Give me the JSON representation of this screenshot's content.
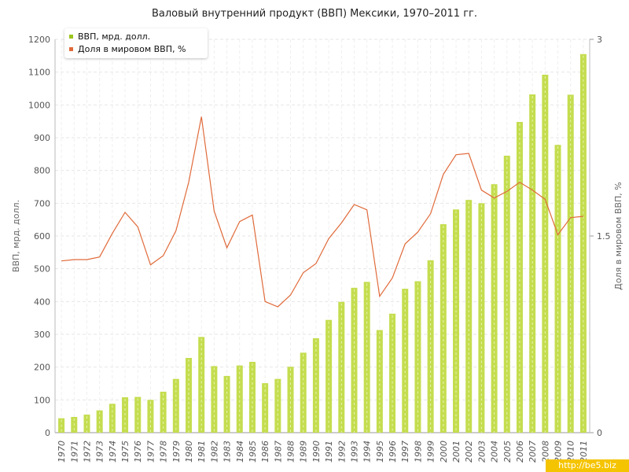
{
  "chart_data": {
    "type": "bar+line",
    "title": "Валовый внутренний продукт (ВВП) Мексики, 1970–2011 гг.",
    "categories": [
      "1970",
      "1971",
      "1972",
      "1973",
      "1974",
      "1975",
      "1976",
      "1977",
      "1978",
      "1979",
      "1980",
      "1981",
      "1982",
      "1983",
      "1984",
      "1985",
      "1986",
      "1987",
      "1988",
      "1989",
      "1990",
      "1991",
      "1992",
      "1993",
      "1994",
      "1995",
      "1996",
      "1997",
      "1998",
      "1999",
      "2000",
      "2001",
      "2002",
      "2003",
      "2004",
      "2005",
      "2006",
      "2007",
      "2008",
      "2009",
      "2010",
      "2011"
    ],
    "series": [
      {
        "name": "ВВП, мрд. долл.",
        "type": "bar",
        "axis": "left",
        "color": "#c4dd4f",
        "values": [
          44,
          48,
          55,
          68,
          88,
          108,
          109,
          100,
          125,
          164,
          228,
          292,
          203,
          173,
          205,
          216,
          151,
          164,
          201,
          244,
          288,
          344,
          399,
          442,
          460,
          313,
          363,
          439,
          462,
          526,
          636,
          681,
          710,
          700,
          758,
          845,
          948,
          1032,
          1092,
          878,
          1031,
          1155
        ]
      },
      {
        "name": "Доля в мировом ВВП, %",
        "type": "line",
        "axis": "right",
        "color": "#e06a3a",
        "values": [
          1.31,
          1.32,
          1.32,
          1.34,
          1.52,
          1.68,
          1.57,
          1.28,
          1.35,
          1.54,
          1.91,
          2.41,
          1.69,
          1.41,
          1.61,
          1.66,
          1.0,
          0.96,
          1.05,
          1.22,
          1.29,
          1.48,
          1.6,
          1.74,
          1.7,
          1.04,
          1.18,
          1.44,
          1.53,
          1.67,
          1.97,
          2.12,
          2.13,
          1.85,
          1.79,
          1.84,
          1.91,
          1.85,
          1.78,
          1.51,
          1.64,
          1.65
        ]
      }
    ],
    "ylabel": "ВВП, мрд. долл.",
    "y2label": "Доля в мировом ВВП, %",
    "ylim": [
      0,
      1200
    ],
    "y2lim": [
      0,
      3
    ],
    "yticks": [
      0,
      100,
      200,
      300,
      400,
      500,
      600,
      700,
      800,
      900,
      1000,
      1100,
      1200
    ],
    "y2ticks": [
      "0",
      "1.5",
      "3"
    ],
    "grid": true,
    "legend_position": "top-left"
  },
  "watermark": "http://be5.biz"
}
